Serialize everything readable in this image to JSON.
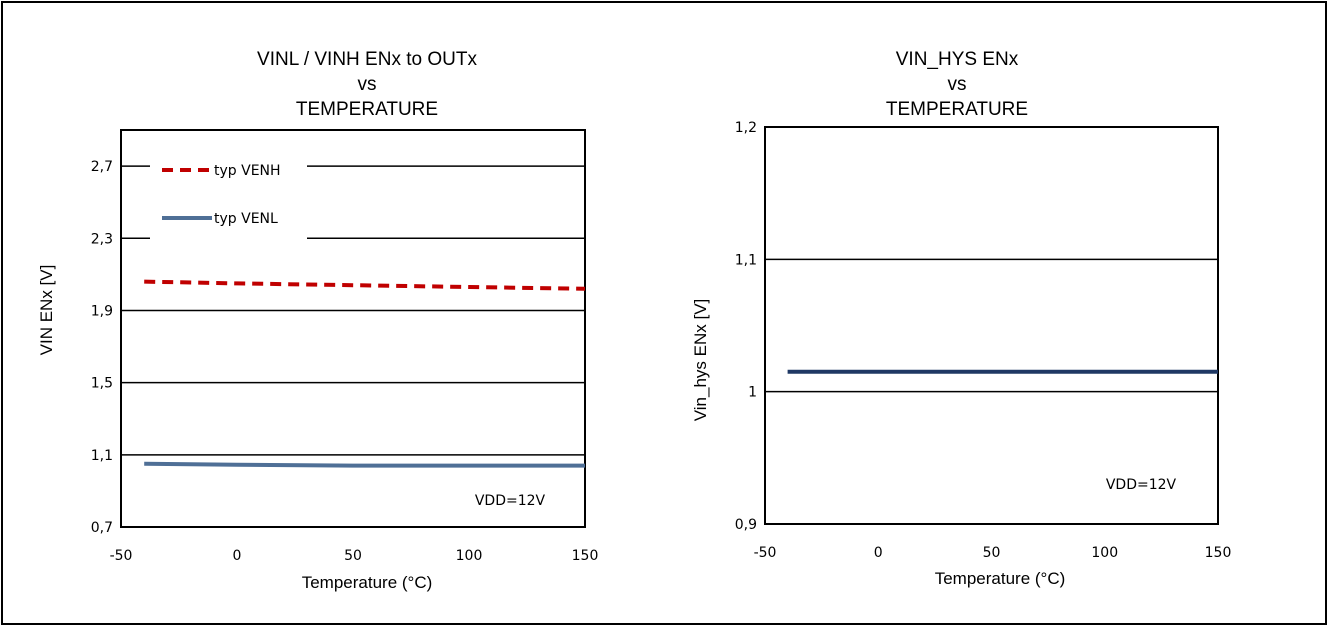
{
  "chart_data": [
    {
      "type": "line",
      "title": [
        "VINL / VINH ENx to OUTx",
        "vs",
        "TEMPERATURE"
      ],
      "xlabel": "Temperature  (°C)",
      "ylabel": "VIN ENx [V]",
      "xlim": [
        -50,
        150
      ],
      "ylim": [
        0.7,
        2.9
      ],
      "xticks": [
        -50,
        0,
        50,
        100,
        150
      ],
      "xtick_labels": [
        "-50",
        "0",
        "50",
        "100",
        "150"
      ],
      "yticks": [
        0.7,
        1.1,
        1.5,
        1.9,
        2.3,
        2.7
      ],
      "ytick_labels": [
        "0,7",
        "1,1",
        "1,5",
        "1,9",
        "2,3",
        "2,7"
      ],
      "grid": "horizontal",
      "legend": "top-left",
      "annotation": "VDD=12V",
      "series": [
        {
          "name": "typ VENH",
          "color": "#c00000",
          "dash": "dashed",
          "x": [
            -40,
            0,
            50,
            100,
            150
          ],
          "y": [
            2.06,
            2.05,
            2.04,
            2.03,
            2.02
          ]
        },
        {
          "name": "typ VENL",
          "color": "#4f6f96",
          "dash": "solid",
          "x": [
            -40,
            0,
            50,
            100,
            150
          ],
          "y": [
            1.05,
            1.045,
            1.04,
            1.04,
            1.04
          ]
        }
      ]
    },
    {
      "type": "line",
      "title": [
        "VIN_HYS ENx",
        "vs",
        "TEMPERATURE"
      ],
      "xlabel": "Temperature  (°C)",
      "ylabel": "Vin_hys ENx [V]",
      "xlim": [
        -50,
        150
      ],
      "ylim": [
        0.9,
        1.2
      ],
      "xticks": [
        -50,
        0,
        50,
        100,
        150
      ],
      "xtick_labels": [
        "-50",
        "0",
        "50",
        "100",
        "150"
      ],
      "yticks": [
        0.9,
        1.0,
        1.1,
        1.2
      ],
      "ytick_labels": [
        "0,9",
        "1",
        "1,1",
        "1,2"
      ],
      "grid": "horizontal",
      "annotation": "VDD=12V",
      "series": [
        {
          "color": "#1f3864",
          "dash": "solid",
          "x": [
            -40,
            0,
            50,
            100,
            150
          ],
          "y": [
            1.015,
            1.015,
            1.015,
            1.015,
            1.015
          ]
        }
      ]
    }
  ]
}
